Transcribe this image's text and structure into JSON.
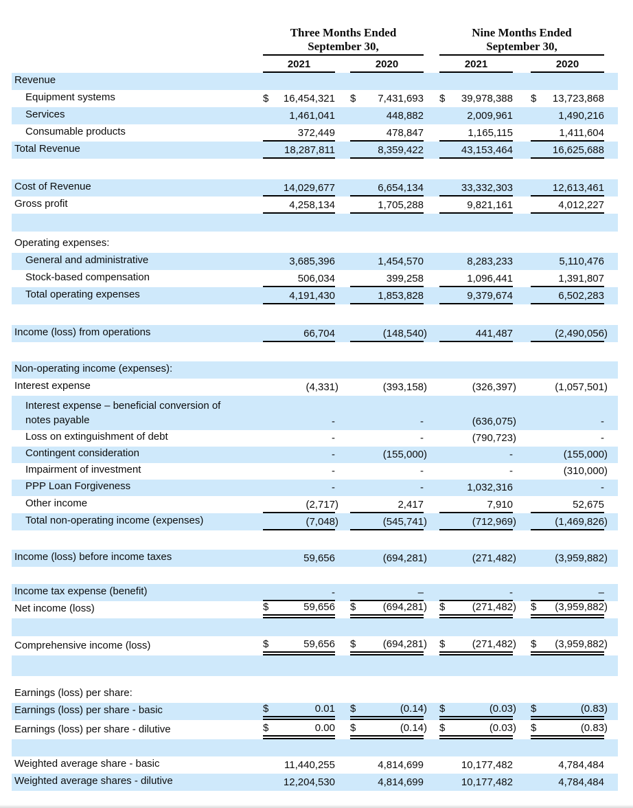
{
  "colors": {
    "stripe": "#cfe9fb",
    "rule": "#000000",
    "text": "#0c0c0c",
    "background": "#ffffff"
  },
  "currency_symbol": "$",
  "header": {
    "groups": [
      {
        "line1": "Three Months Ended",
        "line2": "September 30,",
        "years": [
          "2021",
          "2020"
        ]
      },
      {
        "line1": "Nine Months Ended",
        "line2": "September 30,",
        "years": [
          "2021",
          "2020"
        ]
      }
    ]
  },
  "rows": [
    {
      "label": "Revenue",
      "shaded": true,
      "values": [
        "",
        "",
        "",
        ""
      ]
    },
    {
      "label": "Equipment systems",
      "indent": true,
      "currency": true,
      "values": [
        "16,454,321",
        "7,431,693",
        "39,978,388",
        "13,723,868"
      ]
    },
    {
      "label": "Services",
      "indent": true,
      "shaded": true,
      "values": [
        "1,461,041",
        "448,882",
        "2,009,961",
        "1,490,216"
      ]
    },
    {
      "label": "Consumable products",
      "indent": true,
      "border": "single",
      "values": [
        "372,449",
        "478,847",
        "1,165,115",
        "1,411,604"
      ]
    },
    {
      "label": "Total Revenue",
      "shaded": true,
      "border": "single",
      "values": [
        "18,287,811",
        "8,359,422",
        "43,153,464",
        "16,625,688"
      ]
    },
    {
      "spacer": true,
      "variant": "sp-30",
      "values": [
        "",
        "",
        "",
        ""
      ]
    },
    {
      "label": "Cost of Revenue",
      "shaded": true,
      "border": "single",
      "values": [
        "14,029,677",
        "6,654,134",
        "33,332,303",
        "12,613,461"
      ]
    },
    {
      "label": "Gross profit",
      "border": "single",
      "values": [
        "4,258,134",
        "1,705,288",
        "9,821,161",
        "4,012,227"
      ]
    },
    {
      "spacer": true,
      "shaded": true,
      "variant": "sp-26",
      "values": [
        "",
        "",
        "",
        ""
      ]
    },
    {
      "spacer": true,
      "variant": "sp-6",
      "values": [
        "",
        "",
        "",
        ""
      ]
    },
    {
      "label": "Operating expenses:",
      "values": [
        "",
        "",
        "",
        ""
      ]
    },
    {
      "label": "General and administrative",
      "indent": true,
      "shaded": true,
      "values": [
        "3,685,396",
        "1,454,570",
        "8,283,233",
        "5,110,476"
      ]
    },
    {
      "label": "Stock-based compensation",
      "indent": true,
      "border": "single",
      "values": [
        "506,034",
        "399,258",
        "1,096,441",
        "1,391,807"
      ]
    },
    {
      "label": "Total operating expenses",
      "indent": true,
      "shaded": true,
      "border": "single",
      "values": [
        "4,191,430",
        "1,853,828",
        "9,379,674",
        "6,502,283"
      ]
    },
    {
      "spacer": true,
      "variant": "sp-30",
      "values": [
        "",
        "",
        "",
        ""
      ]
    },
    {
      "label": "Income (loss) from operations",
      "shaded": true,
      "border": "single",
      "values": [
        "66,704",
        "(148,540)",
        "441,487",
        "(2,490,056)"
      ]
    },
    {
      "spacer": true,
      "variant": "sp-28",
      "values": [
        "",
        "",
        "",
        ""
      ]
    },
    {
      "label": "Non-operating income (expenses):",
      "shaded": true,
      "values": [
        "",
        "",
        "",
        ""
      ]
    },
    {
      "label": "Interest expense",
      "values": [
        "(4,331)",
        "(393,158)",
        "(326,397)",
        "(1,057,501)"
      ]
    },
    {
      "label": "Interest expense – beneficial conversion of\nnotes payable",
      "indent": true,
      "shaded": true,
      "variant": "tall",
      "values": [
        "-",
        "-",
        "(636,075)",
        "-"
      ]
    },
    {
      "label": "Loss on extinguishment of debt",
      "indent": true,
      "variant": "short",
      "values": [
        "-",
        "-",
        "(790,723)",
        "-"
      ]
    },
    {
      "label": "Contingent consideration",
      "indent": true,
      "shaded": true,
      "variant": "short",
      "values": [
        "-",
        "(155,000)",
        "-",
        "(155,000)"
      ]
    },
    {
      "label": "Impairment of investment",
      "indent": true,
      "variant": "short",
      "values": [
        "-",
        "-",
        "-",
        "(310,000)"
      ]
    },
    {
      "label": "PPP Loan Forgiveness",
      "indent": true,
      "shaded": true,
      "variant": "short",
      "values": [
        "-",
        "-",
        "1,032,316",
        "-"
      ]
    },
    {
      "label": "Other income",
      "indent": true,
      "border": "single",
      "values": [
        "(2,717)",
        "2,417",
        "7,910",
        "52,675"
      ]
    },
    {
      "label": "Total non-operating income (expenses)",
      "indent": true,
      "shaded": true,
      "border": "single",
      "values": [
        "(7,048)",
        "(545,741)",
        "(712,969)",
        "(1,469,826)"
      ]
    },
    {
      "spacer": true,
      "variant": "sp-28",
      "values": [
        "",
        "",
        "",
        ""
      ]
    },
    {
      "label": "Income (loss) before income taxes",
      "shaded": true,
      "values": [
        "59,656",
        "(694,281)",
        "(271,482)",
        "(3,959,882)"
      ]
    },
    {
      "spacer": true,
      "variant": "sp-25",
      "values": [
        "",
        "",
        "",
        ""
      ]
    },
    {
      "label": "Income tax expense (benefit)",
      "shaded": true,
      "border": "single",
      "values": [
        "-",
        "–",
        "-",
        "–"
      ]
    },
    {
      "label": "Net income (loss)",
      "currency": true,
      "border": "double",
      "values": [
        "59,656",
        "(694,281)",
        "(271,482)",
        "(3,959,882)"
      ]
    },
    {
      "spacer": true,
      "shaded": true,
      "variant": "sp-26",
      "values": [
        "",
        "",
        "",
        ""
      ]
    },
    {
      "label": "Comprehensive income (loss)",
      "currency": true,
      "border": "double",
      "variant": "taller",
      "values": [
        "59,656",
        "(694,281)",
        "(271,482)",
        "(3,959,882)"
      ]
    },
    {
      "spacer": true,
      "shaded": true,
      "variant": "sp-30",
      "values": [
        "",
        "",
        "",
        ""
      ]
    },
    {
      "spacer": true,
      "variant": "sp-14",
      "values": [
        "",
        "",
        "",
        ""
      ]
    },
    {
      "label": "Earnings (loss) per share:",
      "values": [
        "",
        "",
        "",
        ""
      ]
    },
    {
      "label": "Earnings (loss) per share - basic",
      "shaded": true,
      "currency": true,
      "border": "double",
      "values": [
        "0.01",
        "(0.14)",
        "(0.03)",
        "(0.83)"
      ]
    },
    {
      "label": "Earnings (loss) per share - dilutive",
      "currency": true,
      "border": "double",
      "variant": "taller",
      "values": [
        "0.00",
        "(0.14)",
        "(0.03)",
        "(0.83)"
      ]
    },
    {
      "spacer": true,
      "shaded": true,
      "variant": "sp-25",
      "values": [
        "",
        "",
        "",
        ""
      ]
    },
    {
      "label": "Weighted average share - basic",
      "values": [
        "11,440,255",
        "4,814,699",
        "10,177,482",
        "4,784,484"
      ]
    },
    {
      "label": "Weighted average shares - dilutive",
      "shaded": true,
      "values": [
        "12,204,530",
        "4,814,699",
        "10,177,482",
        "4,784,484"
      ]
    }
  ]
}
